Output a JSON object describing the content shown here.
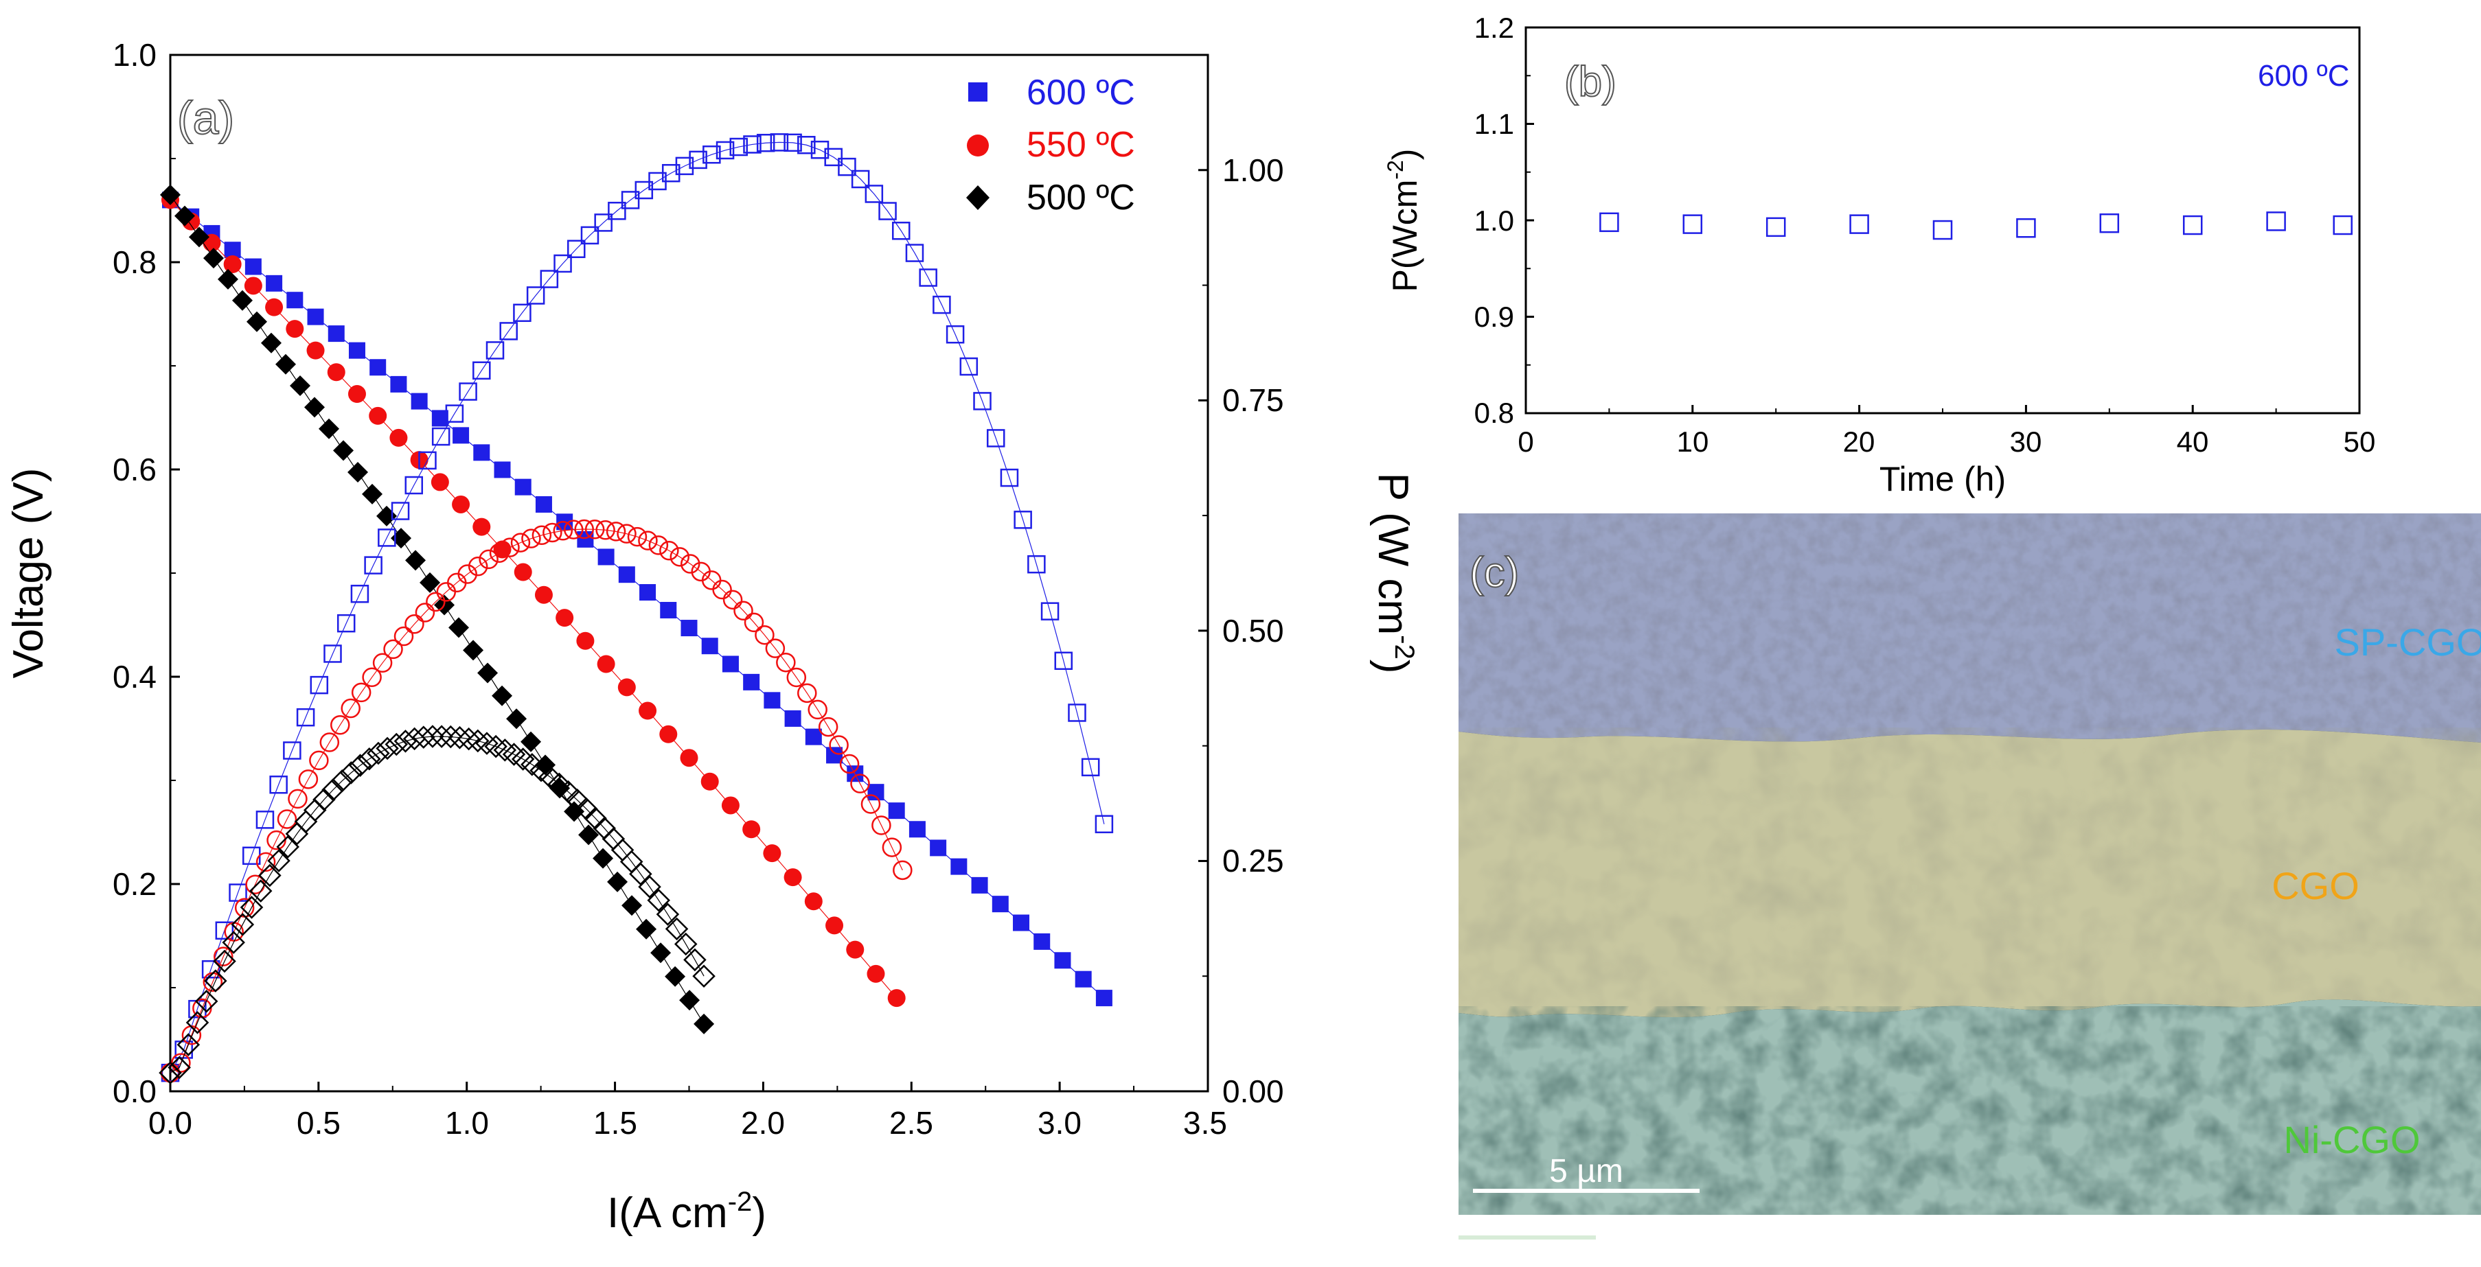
{
  "colors": {
    "c600": "#1f1fe6",
    "c550": "#f01010",
    "c500": "#000000",
    "sem_top": "#9aa3c4",
    "sem_mid": "#c8c7a0",
    "sem_bot": "#9fbfb6"
  },
  "chart_data": [
    {
      "type": "scatter",
      "panel_label": "(a)",
      "xlabel": "I(A cm-2)",
      "xlabel_base": "I(A cm",
      "xlabel_sup": "-2",
      "xlabel_close": ")",
      "ylabel": "Voltage (V)",
      "y2label": "P (W cm-2)",
      "y2label_base": "P (W cm",
      "y2label_sup": "-2",
      "y2label_close": ")",
      "xlim": [
        0.0,
        3.5
      ],
      "ylim": [
        0.0,
        1.0
      ],
      "y2lim": [
        0.0,
        1.125
      ],
      "xticks": [
        "0.0",
        "0.5",
        "1.0",
        "1.5",
        "2.0",
        "2.5",
        "3.0",
        "3.5"
      ],
      "yticks": [
        "0.0",
        "0.2",
        "0.4",
        "0.6",
        "0.8",
        "1.0"
      ],
      "y2ticks": [
        "0.00",
        "0.25",
        "0.50",
        "0.75",
        "1.00"
      ],
      "legend": [
        {
          "label": "600 ºC",
          "marker": "square",
          "color": "#1f1fe6"
        },
        {
          "label": "550 ºC",
          "marker": "circle",
          "color": "#f01010"
        },
        {
          "label": "500 ºC",
          "marker": "diamond",
          "color": "#000000"
        }
      ],
      "series": [
        {
          "name": "600 ºC voltage",
          "axis": "left",
          "marker": "square",
          "filled": true,
          "color": "#1f1fe6",
          "ocv": 0.86,
          "i_max": 3.15,
          "v_end": 0.09,
          "n": 46
        },
        {
          "name": "550 ºC voltage",
          "axis": "left",
          "marker": "circle",
          "filled": true,
          "color": "#f01010",
          "ocv": 0.86,
          "i_max": 2.45,
          "v_end": 0.09,
          "n": 36
        },
        {
          "name": "500 ºC voltage",
          "axis": "left",
          "marker": "diamond",
          "filled": true,
          "color": "#000000",
          "ocv": 0.865,
          "i_max": 1.8,
          "v_end": 0.065,
          "n": 38
        },
        {
          "name": "600 ºC power",
          "axis": "right",
          "marker": "square",
          "filled": false,
          "color": "#1f1fe6",
          "peak_i": 2.08,
          "peak_p": 1.03,
          "i_max": 3.15,
          "p_end": 0.29,
          "n": 70
        },
        {
          "name": "550 ºC power",
          "axis": "right",
          "marker": "circle",
          "filled": false,
          "color": "#f01010",
          "peak_i": 1.42,
          "peak_p": 0.61,
          "i_max": 2.47,
          "p_end": 0.24,
          "n": 70
        },
        {
          "name": "500 ºC power",
          "axis": "right",
          "marker": "diamond",
          "filled": false,
          "color": "#000000",
          "peak_i": 0.92,
          "peak_p": 0.385,
          "i_max": 1.8,
          "p_end": 0.125,
          "n": 60
        }
      ]
    },
    {
      "type": "scatter",
      "panel_label": "(b)",
      "annotation": "600 ºC",
      "xlabel": "Time (h)",
      "ylabel": "P(Wcm-2)",
      "ylabel_base": "P(Wcm",
      "ylabel_sup": "-2",
      "ylabel_close": ")",
      "xlim": [
        0,
        50
      ],
      "ylim": [
        0.8,
        1.2
      ],
      "xticks": [
        "0",
        "10",
        "20",
        "30",
        "40",
        "50"
      ],
      "yticks": [
        "0.8",
        "0.9",
        "1.0",
        "1.1",
        "1.2"
      ],
      "series": [
        {
          "name": "600 ºC",
          "marker": "square",
          "filled": false,
          "color": "#1f1fe6",
          "x": [
            5,
            10,
            15,
            20,
            25,
            30,
            35,
            40,
            45,
            49
          ],
          "y": [
            0.998,
            0.996,
            0.993,
            0.996,
            0.99,
            0.992,
            0.997,
            0.995,
            0.999,
            0.995
          ]
        }
      ]
    }
  ],
  "panel_c": {
    "label": "(c)",
    "layers": [
      "SP-CGO",
      "CGO",
      "Ni-CGO"
    ],
    "scale_bar": "5 µm"
  }
}
